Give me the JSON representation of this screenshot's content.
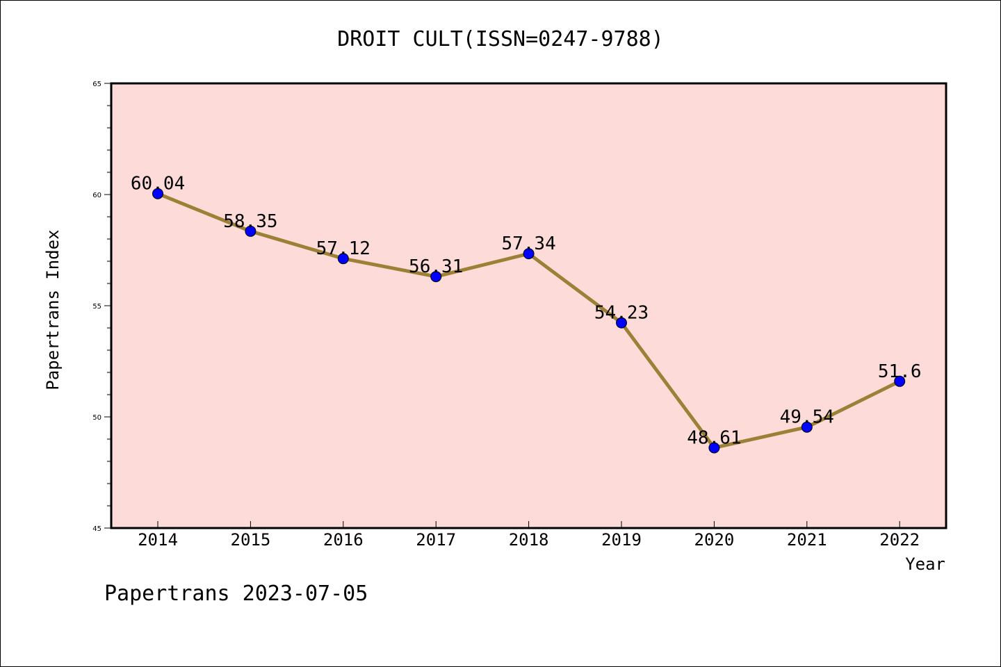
{
  "chart_data": {
    "type": "line",
    "title": "DROIT CULT(ISSN=0247-9788)",
    "xlabel": "Year",
    "ylabel": "Papertrans Index",
    "categories": [
      "2014",
      "2015",
      "2016",
      "2017",
      "2018",
      "2019",
      "2020",
      "2021",
      "2022"
    ],
    "series": [
      {
        "values": [
          60.04,
          58.35,
          57.12,
          56.31,
          57.34,
          54.23,
          48.61,
          49.54,
          51.6
        ]
      }
    ],
    "data_labels": [
      "60.04",
      "58.35",
      "57.12",
      "56.31",
      "57.34",
      "54.23",
      "48.61",
      "49.54",
      "51.6"
    ],
    "ylim": [
      45,
      65
    ],
    "yticks": [
      45,
      50,
      55,
      60,
      65
    ],
    "grid": false,
    "legend": "none",
    "colors": {
      "plot_background": "#fddbd8",
      "line": "#9b8035",
      "marker": "#0000ff"
    }
  },
  "footer": "Papertrans 2023-07-05"
}
